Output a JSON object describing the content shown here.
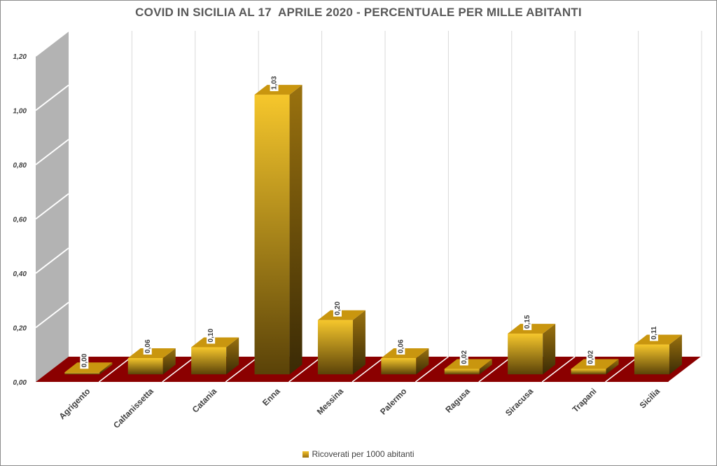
{
  "chart_data": {
    "type": "bar",
    "title": "COVID IN SICILIA AL 17  APRILE 2020 - PERCENTUALE PER MILLE ABITANTI",
    "categories": [
      "Agrigento",
      "Caltanissetta",
      "Catania",
      "Enna",
      "Messina",
      "Palermo",
      "Ragusa",
      "Siracusa",
      "Trapani",
      "Sicilia"
    ],
    "series": [
      {
        "name": "Ricoverati per 1000 abitanti",
        "values": [
          0.0,
          0.06,
          0.1,
          1.03,
          0.2,
          0.06,
          0.02,
          0.15,
          0.02,
          0.11
        ],
        "data_labels": [
          "0,00",
          "0,06",
          "0,10",
          "1,03",
          "0,20",
          "0,06",
          "0,02",
          "0,15",
          "0,02",
          "0,11"
        ]
      }
    ],
    "ylim": [
      0,
      1.2
    ],
    "ytick_values": [
      0,
      0.2,
      0.4,
      0.6,
      0.8,
      1.0,
      1.2
    ],
    "ytick_labels": [
      "0,00",
      "0,20",
      "0,40",
      "0,60",
      "0,80",
      "1,00",
      "1,20"
    ],
    "xlabel": "",
    "ylabel": "",
    "grid": true,
    "legend_position": "bottom",
    "colors": {
      "bar_top": "#f3c22a",
      "bar_bottom": "#5a4208",
      "floor": "#8b0000",
      "wall": "#b3b3b3",
      "gridline": "#d9d9d9"
    }
  }
}
